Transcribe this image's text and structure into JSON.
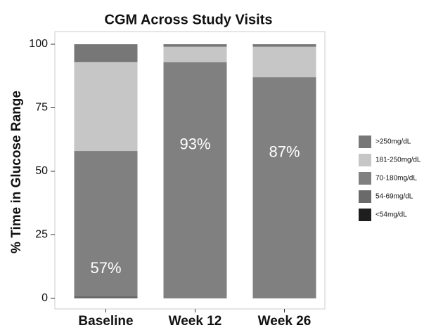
{
  "chart_data": {
    "type": "stacked_bar",
    "title": "CGM Across Study Visits",
    "ylabel": "% Time in Glucose Range",
    "categories": [
      "Baseline",
      "Week 12",
      "Week 26"
    ],
    "series": [
      {
        "name": "<54mg/dL",
        "color": "#1e1e1e",
        "values": [
          0,
          0,
          0
        ]
      },
      {
        "name": "54-69mg/dL",
        "color": "#6a6a6a",
        "values": [
          1,
          0,
          0
        ]
      },
      {
        "name": "70-180mg/dL",
        "color": "#808080",
        "values": [
          57,
          93,
          87
        ],
        "value_labels": [
          "57%",
          "93%",
          "87%"
        ]
      },
      {
        "name": "181-250mg/dL",
        "color": "#c6c6c6",
        "values": [
          35,
          6,
          12
        ]
      },
      {
        "name": ">250mg/dL",
        "color": "#777777",
        "values": [
          7,
          1,
          1
        ]
      }
    ],
    "ylim": [
      0,
      100
    ],
    "yticks": [
      0,
      25,
      50,
      75,
      100
    ],
    "legend": "right"
  }
}
